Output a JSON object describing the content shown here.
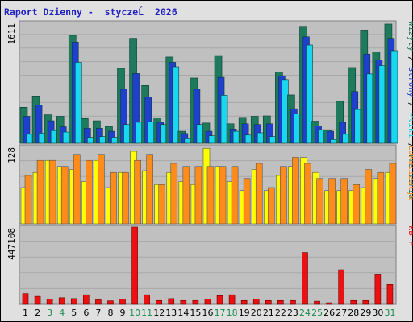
{
  "title": "Raport Dzienny -  styczeĹ  2026",
  "colors": {
    "visits": "#1e7a5a",
    "sites": "#1f3fcf",
    "pages": "#19d7ef",
    "hits_outline": "#0a6060",
    "traffic": "#ee1010",
    "yellow": "#ffff00",
    "orange": "#ff8c1a",
    "plot_bg": "#c0c0c0",
    "weekend_label": "#1e8a4e",
    "weekday_label": "#000000"
  },
  "chart_data": [
    {
      "type": "bar",
      "name": "top",
      "ymax_label": "1611",
      "ylim": [
        0,
        1611
      ],
      "categories": [
        "1",
        "2",
        "3",
        "4",
        "5",
        "6",
        "7",
        "8",
        "9",
        "10",
        "11",
        "12",
        "13",
        "14",
        "15",
        "16",
        "17",
        "18",
        "19",
        "20",
        "21",
        "22",
        "23",
        "24",
        "25",
        "26",
        "27",
        "28",
        "29",
        "30",
        "31"
      ],
      "weekend_days": [
        3,
        4,
        10,
        11,
        17,
        18,
        24,
        25,
        31
      ],
      "series": [
        {
          "name": "Wizyty",
          "color": "#1e7a5a",
          "values": [
            480,
            630,
            380,
            360,
            1440,
            330,
            300,
            225,
            1000,
            1400,
            770,
            340,
            1150,
            160,
            870,
            270,
            1170,
            260,
            345,
            360,
            365,
            950,
            645,
            1560,
            295,
            180,
            560,
            1010,
            1510,
            1220,
            1590
          ]
        },
        {
          "name": "Strony",
          "color": "#1f3fcf",
          "values": [
            360,
            510,
            300,
            220,
            1350,
            200,
            200,
            160,
            720,
            930,
            615,
            280,
            1080,
            130,
            720,
            160,
            880,
            190,
            260,
            250,
            260,
            900,
            460,
            1420,
            230,
            160,
            280,
            690,
            1190,
            1110,
            1400
          ]
        },
        {
          "name": "Pliki",
          "color": "#19d7ef",
          "values": [
            120,
            135,
            170,
            150,
            1080,
            80,
            90,
            80,
            250,
            280,
            285,
            250,
            1020,
            60,
            250,
            100,
            640,
            160,
            110,
            140,
            90,
            850,
            390,
            1310,
            180,
            50,
            120,
            450,
            925,
            1035,
            1235
          ]
        }
      ]
    },
    {
      "type": "bar",
      "name": "middle",
      "ymax_label": "128",
      "ylim": [
        0,
        128
      ],
      "series": [
        {
          "name": "Trafienia",
          "color": "#ffff00",
          "values": [
            60,
            85,
            105,
            95,
            90,
            70,
            105,
            60,
            85,
            120,
            88,
            65,
            85,
            70,
            65,
            125,
            95,
            70,
            55,
            90,
            55,
            80,
            95,
            110,
            85,
            55,
            55,
            55,
            60,
            75,
            85
          ]
        },
        {
          "name": "Lokalizacje",
          "color": "#ff8c1a",
          "values": [
            80,
            105,
            105,
            95,
            115,
            105,
            115,
            85,
            85,
            105,
            115,
            65,
            100,
            95,
            95,
            95,
            95,
            95,
            75,
            100,
            60,
            95,
            110,
            100,
            75,
            75,
            75,
            65,
            90,
            85,
            100
          ]
        }
      ]
    },
    {
      "type": "bar",
      "name": "bottom",
      "ymax_label": "447108",
      "ylim": [
        0,
        447108
      ],
      "series": [
        {
          "name": "kB F",
          "color": "#ee1010",
          "values": [
            62000,
            46000,
            31000,
            38000,
            33000,
            55000,
            26000,
            20000,
            30000,
            447108,
            55000,
            22000,
            33000,
            22000,
            22000,
            30000,
            50000,
            55000,
            22000,
            30000,
            22000,
            22000,
            22000,
            300000,
            18000,
            9000,
            200000,
            22000,
            22000,
            175000,
            115000
          ]
        }
      ]
    }
  ],
  "axis_labels": [
    "1",
    "2",
    "3",
    "4",
    "5",
    "6",
    "7",
    "8",
    "9",
    "10",
    "11",
    "12",
    "13",
    "14",
    "15",
    "16",
    "17",
    "18",
    "19",
    "20",
    "21",
    "22",
    "23",
    "24",
    "25",
    "26",
    "27",
    "28",
    "29",
    "30",
    "31"
  ],
  "right_legend": [
    {
      "text": "Wizyty",
      "color": "#1e7a5a"
    },
    {
      "text": " / ",
      "color": "#000000"
    },
    {
      "text": "Strony",
      "color": "#1f3fcf"
    },
    {
      "text": " / ",
      "color": "#000000"
    },
    {
      "text": "Pliki",
      "color": "#19d7ef"
    },
    {
      "text": " / ",
      "color": "#000000"
    },
    {
      "text": "Trafienia",
      "color": "#1e7a5a"
    }
  ]
}
